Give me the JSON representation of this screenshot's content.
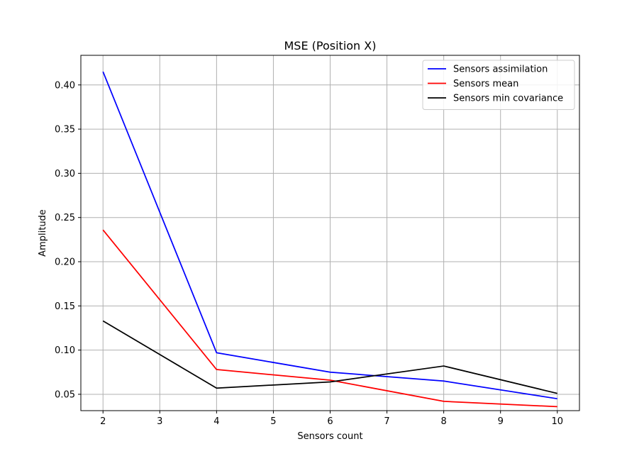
{
  "chart_data": {
    "type": "line",
    "title": "MSE (Position X)",
    "xlabel": "Sensors count",
    "ylabel": "Amplitude",
    "xlim": [
      1.61,
      10.39
    ],
    "ylim": [
      0.0315,
      0.4335
    ],
    "xticks": [
      2,
      3,
      4,
      5,
      6,
      7,
      8,
      9,
      10
    ],
    "yticks": [
      0.05,
      0.1,
      0.15,
      0.2,
      0.25,
      0.3,
      0.35,
      0.4
    ],
    "ytick_labels": [
      "0.05",
      "0.10",
      "0.15",
      "0.20",
      "0.25",
      "0.30",
      "0.35",
      "0.40"
    ],
    "grid": true,
    "legend_position": "top-right",
    "x": [
      2,
      4,
      6,
      8,
      10
    ],
    "series": [
      {
        "name": "Sensors assimilation",
        "color": "#0000ff",
        "values": [
          0.415,
          0.097,
          0.075,
          0.065,
          0.045
        ]
      },
      {
        "name": "Sensors mean",
        "color": "#ff0000",
        "values": [
          0.236,
          0.078,
          0.066,
          0.042,
          0.036
        ]
      },
      {
        "name": "Sensors min covariance",
        "color": "#000000",
        "values": [
          0.133,
          0.057,
          0.064,
          0.082,
          0.051
        ]
      }
    ]
  }
}
